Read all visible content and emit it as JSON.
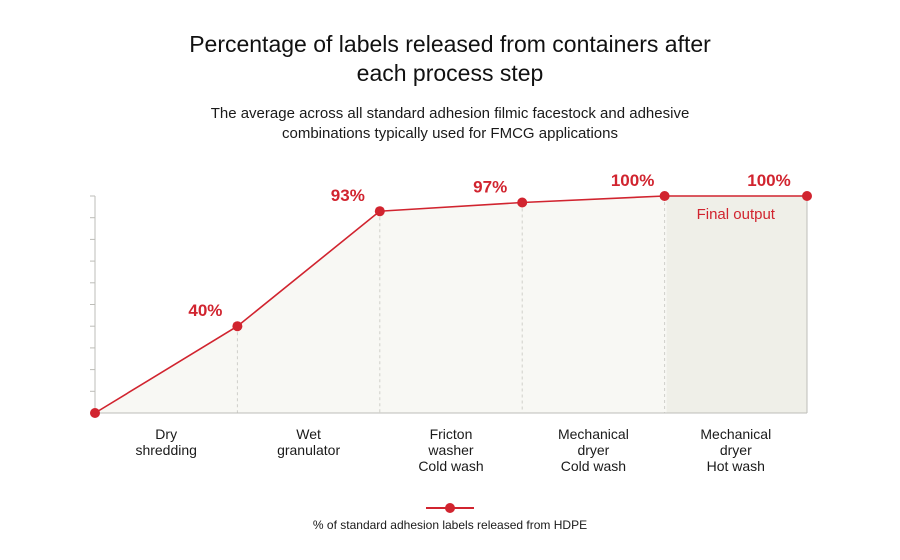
{
  "chart_data": {
    "type": "line",
    "title": "Percentage of labels released from containers after\neach process step",
    "subtitle": "The average across all standard adhesion filmic facestock and adhesive\ncombinations typically used for FMCG applications",
    "categories": [
      "Dry\nshredding",
      "Wet\ngranulator",
      "Fricton\nwasher\nCold wash",
      "Mechanical\ndryer\nCold wash",
      "Mechanical\ndryer\nHot wash"
    ],
    "x": [
      0,
      1,
      2,
      3,
      4,
      5
    ],
    "values": [
      0,
      40,
      93,
      97,
      100,
      100
    ],
    "data_labels": [
      "",
      "40%",
      "93%",
      "97%",
      "100%",
      "100%"
    ],
    "ylim": [
      0,
      100
    ],
    "series_name": "% of standard adhesion labels released from HDPE",
    "annotation": "Final output",
    "colors": {
      "line": "#d1242f",
      "fill": "#f8f8f4",
      "final_fill": "#efefe8",
      "axis": "#bdbdb8",
      "label": "#d1242f"
    }
  }
}
